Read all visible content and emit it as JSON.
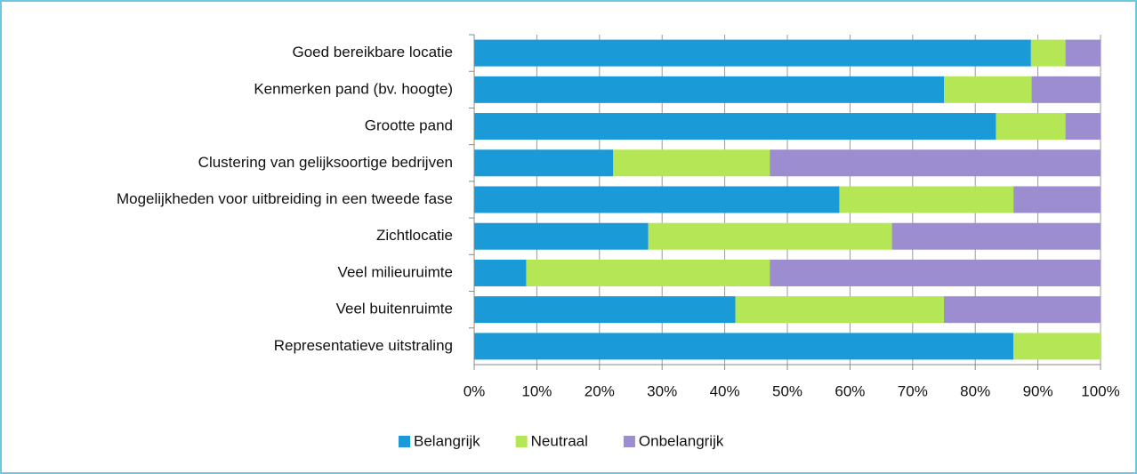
{
  "chart_data": {
    "type": "stacked-barh",
    "categories": [
      "Goed bereikbare locatie",
      "Kenmerken pand (bv. hoogte)",
      "Grootte pand",
      "Clustering van gelijksoortige bedrijven",
      "Mogelijkheden voor uitbreiding in een tweede fase",
      "Zichtlocatie",
      "Veel milieuruimte",
      "Veel buitenruimte",
      "Representatieve uitstraling"
    ],
    "series": [
      {
        "name": "Belangrijk",
        "color": "#1a9ad6",
        "values": [
          88.9,
          75,
          83.3,
          22.2,
          58.3,
          27.8,
          8.3,
          41.7,
          86.1
        ]
      },
      {
        "name": "Neutraal",
        "color": "#b5e655",
        "values": [
          5.5,
          14,
          11.1,
          25,
          27.8,
          38.9,
          38.9,
          33.3,
          13.9
        ]
      },
      {
        "name": "Onbelangrijk",
        "color": "#9b8dd0",
        "values": [
          5.6,
          11,
          5.6,
          52.8,
          13.9,
          33.3,
          52.8,
          25,
          0
        ]
      }
    ],
    "xlim": [
      0,
      100
    ],
    "xticks": [
      {
        "value": 0,
        "label": "0%"
      },
      {
        "value": 10,
        "label": "10%"
      },
      {
        "value": 20,
        "label": "20%"
      },
      {
        "value": 30,
        "label": "30%"
      },
      {
        "value": 40,
        "label": "40%"
      },
      {
        "value": 50,
        "label": "50%"
      },
      {
        "value": 60,
        "label": "60%"
      },
      {
        "value": 70,
        "label": "70%"
      },
      {
        "value": 80,
        "label": "80%"
      },
      {
        "value": 90,
        "label": "90%"
      },
      {
        "value": 100,
        "label": "100%"
      }
    ],
    "grid": true,
    "legend": "bottom"
  }
}
